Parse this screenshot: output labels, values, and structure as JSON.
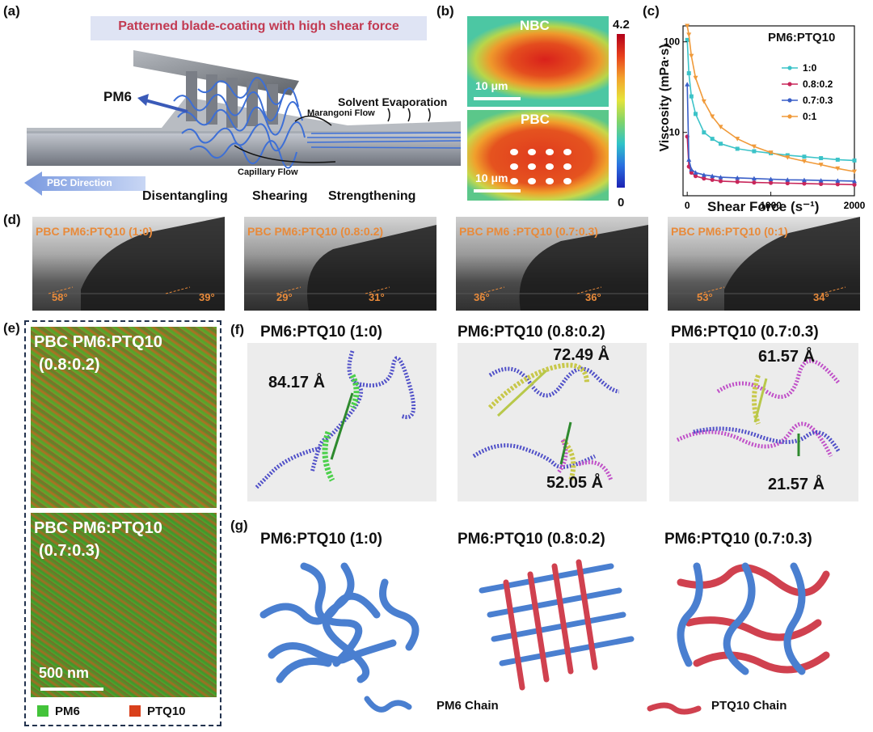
{
  "panel_labels": {
    "a": "(a)",
    "b": "(b)",
    "c": "(c)",
    "d": "(d)",
    "e": "(e)",
    "f": "(f)",
    "g": "(g)"
  },
  "panel_a": {
    "banner": "Patterned blade-coating with high shear force",
    "pm6_label": "PM6",
    "marangoni": "Marangoni Flow",
    "solvent": "Solvent Evaporation",
    "capillary": "Capillary Flow",
    "direction": "PBC Direction",
    "steps": [
      "Disentangling",
      "Shearing",
      "Strengthening"
    ]
  },
  "panel_b": {
    "top_label": "NBC",
    "bottom_label": "PBC",
    "scale_top": "10 μm",
    "scale_bottom": "10 μm",
    "cbar_max": "4.2",
    "cbar_min": "0"
  },
  "panel_d": {
    "titles": [
      "PBC PM6:PTQ10 (1:0)",
      "PBC PM6:PTQ10 (0.8:0.2)",
      "PBC PM6 :PTQ10 (0.7:0.3)",
      "PBC PM6:PTQ10 (0:1)"
    ],
    "angles": [
      [
        "58°",
        "39°"
      ],
      [
        "29°",
        "31°"
      ],
      [
        "36°",
        "36°"
      ],
      [
        "53°",
        "34°"
      ]
    ]
  },
  "panel_e": {
    "top_label_1": "PBC PM6:PTQ10",
    "top_label_2": "(0.8:0.2)",
    "bottom_label_1": "PBC PM6:PTQ10",
    "bottom_label_2": "(0.7:0.3)",
    "scale": "500 nm",
    "legend": [
      {
        "label": "PM6",
        "color": "#43c33a"
      },
      {
        "label": "PTQ10",
        "color": "#d9401c"
      }
    ]
  },
  "panel_f": {
    "titles": [
      "PM6:PTQ10 (1:0)",
      "PM6:PTQ10 (0.8:0.2)",
      "PM6:PTQ10 (0.7:0.3)"
    ],
    "distances": [
      [
        "84.17 Å"
      ],
      [
        "72.49 Å",
        "52.05 Å"
      ],
      [
        "61.57 Å",
        "21.57 Å"
      ]
    ]
  },
  "panel_g": {
    "titles": [
      "PM6:PTQ10 (1:0)",
      "PM6:PTQ10 (0.8:0.2)",
      "PM6:PTQ10 (0.7:0.3)"
    ],
    "legend": [
      {
        "label": "PM6 Chain",
        "color": "#4a7fd0"
      },
      {
        "label": "PTQ10 Chain",
        "color": "#d0414f"
      }
    ]
  },
  "chart_data": {
    "type": "line",
    "title": "PM6:PTQ10",
    "xlabel": "Shear Force (s⁻¹)",
    "ylabel": "Viscosity (mPa·s)",
    "xlim": [
      -50,
      2000
    ],
    "ylim": [
      2,
      150
    ],
    "yscale": "log",
    "xticks": [
      "0",
      "1000",
      "2000"
    ],
    "yticks": [
      "10",
      "100"
    ],
    "legend_position": "right",
    "x": [
      0,
      20,
      50,
      100,
      200,
      300,
      400,
      600,
      800,
      1000,
      1200,
      1400,
      1600,
      1800,
      2000
    ],
    "series": [
      {
        "name": "1:0",
        "color": "#3cc3c8",
        "marker": "square",
        "values": [
          105,
          45,
          25,
          16,
          10,
          8.5,
          7.5,
          6.6,
          6.2,
          5.9,
          5.6,
          5.4,
          5.2,
          5.0,
          4.9
        ]
      },
      {
        "name": "0.8:0.2",
        "color": "#c8265a",
        "marker": "circle",
        "values": [
          9,
          4.2,
          3.6,
          3.3,
          3.1,
          3.0,
          2.9,
          2.85,
          2.8,
          2.78,
          2.75,
          2.73,
          2.7,
          2.68,
          2.65
        ]
      },
      {
        "name": "0.7:0.3",
        "color": "#3a5fc8",
        "marker": "triangle",
        "values": [
          34,
          5,
          3.9,
          3.6,
          3.4,
          3.3,
          3.2,
          3.15,
          3.1,
          3.05,
          3.0,
          2.98,
          2.95,
          2.93,
          2.9
        ]
      },
      {
        "name": "0:1",
        "color": "#f09a3a",
        "marker": "triangle-down",
        "values": [
          150,
          120,
          70,
          40,
          22,
          15,
          11.5,
          8.5,
          7,
          6,
          5.3,
          4.8,
          4.4,
          4.0,
          3.7
        ]
      }
    ]
  }
}
